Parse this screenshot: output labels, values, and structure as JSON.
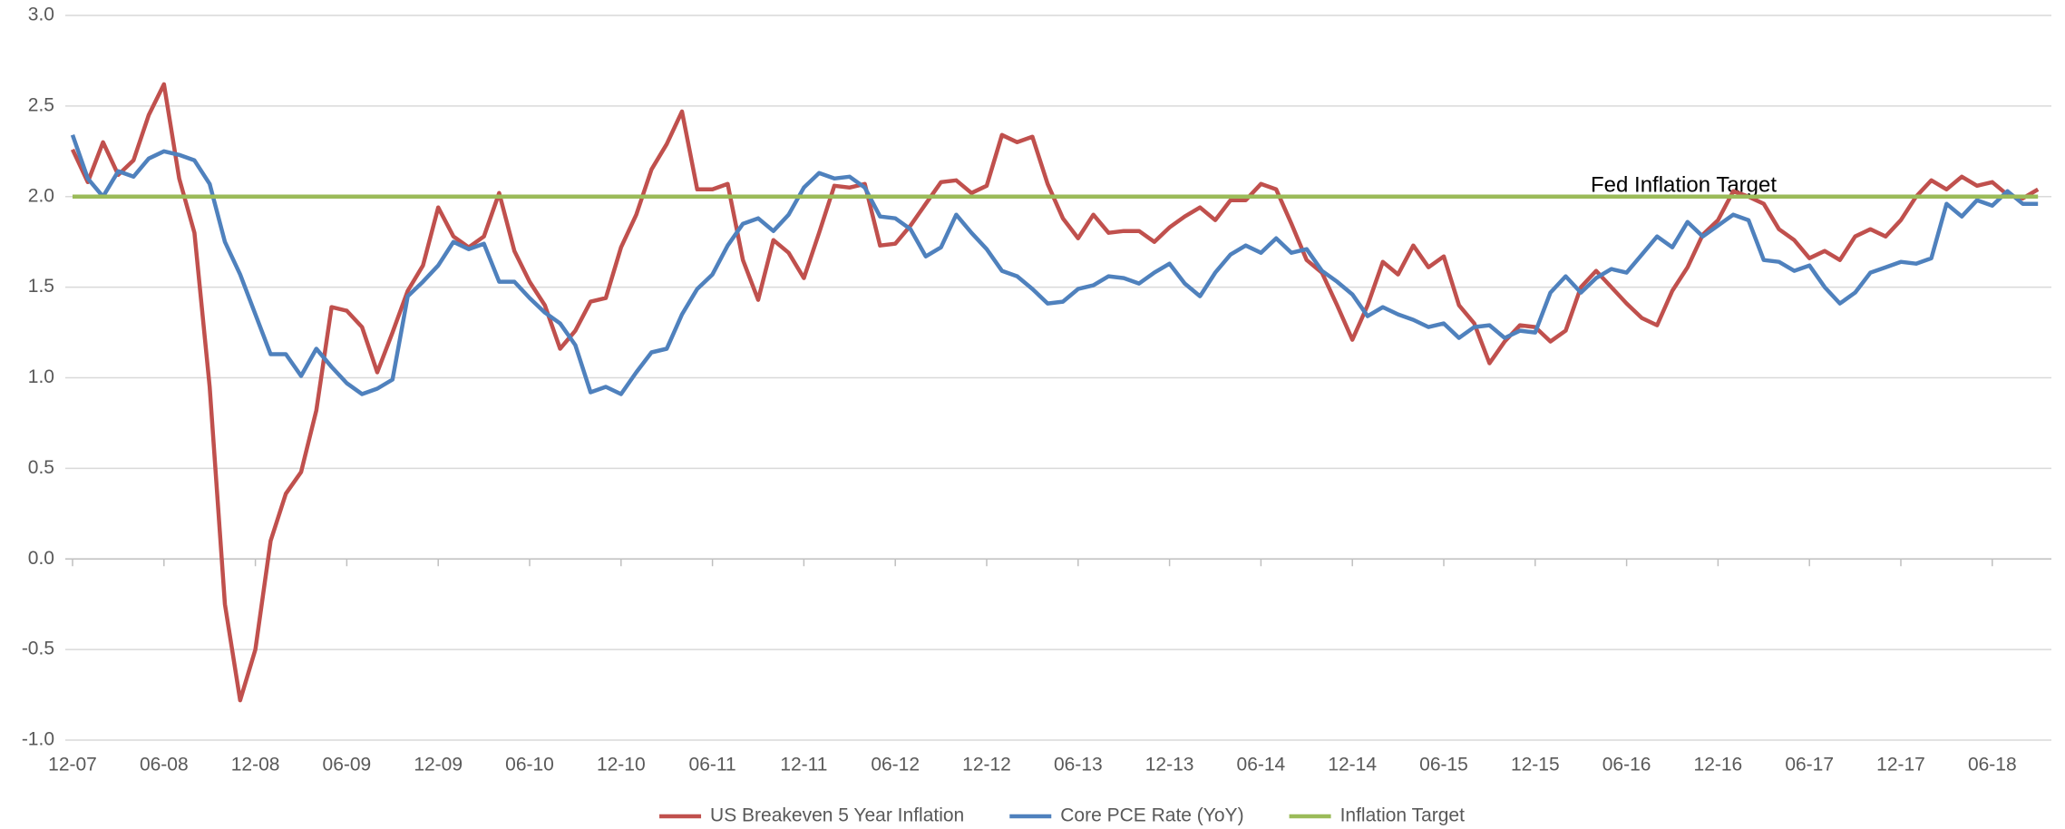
{
  "chart_data": {
    "type": "line",
    "annotation": "Fed Inflation Target",
    "categories": [
      "12-07",
      null,
      null,
      null,
      null,
      null,
      "06-08",
      null,
      null,
      null,
      null,
      null,
      "12-08",
      null,
      null,
      null,
      null,
      null,
      "06-09",
      null,
      null,
      null,
      null,
      null,
      "12-09",
      null,
      null,
      null,
      null,
      null,
      "06-10",
      null,
      null,
      null,
      null,
      null,
      "12-10",
      null,
      null,
      null,
      null,
      null,
      "06-11",
      null,
      null,
      null,
      null,
      null,
      "12-11",
      null,
      null,
      null,
      null,
      null,
      "06-12",
      null,
      null,
      null,
      null,
      null,
      "12-12",
      null,
      null,
      null,
      null,
      null,
      "06-13",
      null,
      null,
      null,
      null,
      null,
      "12-13",
      null,
      null,
      null,
      null,
      null,
      "06-14",
      null,
      null,
      null,
      null,
      null,
      "12-14",
      null,
      null,
      null,
      null,
      null,
      "06-15",
      null,
      null,
      null,
      null,
      null,
      "12-15",
      null,
      null,
      null,
      null,
      null,
      "06-16",
      null,
      null,
      null,
      null,
      null,
      "12-16",
      null,
      null,
      null,
      null,
      null,
      "06-17",
      null,
      null,
      null,
      null,
      null,
      "12-17",
      null,
      null,
      null,
      null,
      null,
      "06-18",
      null,
      null,
      null
    ],
    "series": [
      {
        "name": "US Breakeven 5 Year Inflation",
        "color": "#c0504d",
        "values": [
          2.26,
          2.08,
          2.3,
          2.12,
          2.2,
          2.45,
          2.62,
          2.1,
          1.8,
          0.95,
          -0.25,
          -0.78,
          -0.5,
          0.1,
          0.36,
          0.48,
          0.82,
          1.39,
          1.37,
          1.28,
          1.03,
          1.25,
          1.48,
          1.62,
          1.94,
          1.78,
          1.72,
          1.78,
          2.02,
          1.7,
          1.53,
          1.4,
          1.16,
          1.26,
          1.42,
          1.44,
          1.72,
          1.9,
          2.15,
          2.29,
          2.47,
          2.04,
          2.04,
          2.07,
          1.65,
          1.43,
          1.76,
          1.69,
          1.55,
          1.8,
          2.06,
          2.05,
          2.07,
          1.73,
          1.74,
          1.84,
          1.96,
          2.08,
          2.09,
          2.02,
          2.06,
          2.34,
          2.3,
          2.33,
          2.07,
          1.88,
          1.77,
          1.9,
          1.8,
          1.81,
          1.81,
          1.75,
          1.83,
          1.89,
          1.94,
          1.87,
          1.98,
          1.98,
          2.07,
          2.04,
          1.85,
          1.65,
          1.58,
          1.4,
          1.21,
          1.4,
          1.64,
          1.57,
          1.73,
          1.61,
          1.67,
          1.4,
          1.3,
          1.08,
          1.2,
          1.29,
          1.28,
          1.2,
          1.26,
          1.5,
          1.59,
          1.5,
          1.41,
          1.33,
          1.29,
          1.48,
          1.61,
          1.79,
          1.87,
          2.03,
          2.0,
          1.96,
          1.82,
          1.76,
          1.66,
          1.7,
          1.65,
          1.78,
          1.82,
          1.78,
          1.87,
          2.0,
          2.09,
          2.04,
          2.11,
          2.06,
          2.08,
          2.01,
          1.99,
          2.04
        ]
      },
      {
        "name": "Core PCE Rate (YoY)",
        "color": "#4f81bd",
        "values": [
          2.34,
          2.1,
          2.0,
          2.14,
          2.11,
          2.21,
          2.25,
          2.23,
          2.2,
          2.07,
          1.75,
          1.57,
          1.35,
          1.13,
          1.13,
          1.01,
          1.16,
          1.06,
          0.97,
          0.91,
          0.94,
          0.99,
          1.45,
          1.53,
          1.62,
          1.75,
          1.71,
          1.74,
          1.53,
          1.53,
          1.44,
          1.36,
          1.3,
          1.18,
          0.92,
          0.95,
          0.91,
          1.03,
          1.14,
          1.16,
          1.35,
          1.49,
          1.57,
          1.73,
          1.85,
          1.88,
          1.81,
          1.9,
          2.05,
          2.13,
          2.1,
          2.11,
          2.05,
          1.89,
          1.88,
          1.82,
          1.67,
          1.72,
          1.9,
          1.8,
          1.71,
          1.59,
          1.56,
          1.49,
          1.41,
          1.42,
          1.49,
          1.51,
          1.56,
          1.55,
          1.52,
          1.58,
          1.63,
          1.52,
          1.45,
          1.58,
          1.68,
          1.73,
          1.69,
          1.77,
          1.69,
          1.71,
          1.59,
          1.53,
          1.46,
          1.34,
          1.39,
          1.35,
          1.32,
          1.28,
          1.3,
          1.22,
          1.28,
          1.29,
          1.22,
          1.26,
          1.25,
          1.47,
          1.56,
          1.47,
          1.55,
          1.6,
          1.58,
          1.68,
          1.78,
          1.72,
          1.86,
          1.78,
          1.84,
          1.9,
          1.87,
          1.65,
          1.64,
          1.59,
          1.62,
          1.5,
          1.41,
          1.47,
          1.58,
          1.61,
          1.64,
          1.63,
          1.66,
          1.96,
          1.89,
          1.98,
          1.95,
          2.03,
          1.96,
          1.96
        ]
      },
      {
        "name": "Inflation Target",
        "color": "#9bbb59",
        "values": [
          2,
          2,
          2,
          2,
          2,
          2,
          2,
          2,
          2,
          2,
          2,
          2,
          2,
          2,
          2,
          2,
          2,
          2,
          2,
          2,
          2,
          2,
          2,
          2,
          2,
          2,
          2,
          2,
          2,
          2,
          2,
          2,
          2,
          2,
          2,
          2,
          2,
          2,
          2,
          2,
          2,
          2,
          2,
          2,
          2,
          2,
          2,
          2,
          2,
          2,
          2,
          2,
          2,
          2,
          2,
          2,
          2,
          2,
          2,
          2,
          2,
          2,
          2,
          2,
          2,
          2,
          2,
          2,
          2,
          2,
          2,
          2,
          2,
          2,
          2,
          2,
          2,
          2,
          2,
          2,
          2,
          2,
          2,
          2,
          2,
          2,
          2,
          2,
          2,
          2,
          2,
          2,
          2,
          2,
          2,
          2,
          2,
          2,
          2,
          2,
          2,
          2,
          2,
          2,
          2,
          2,
          2,
          2,
          2,
          2,
          2,
          2,
          2,
          2,
          2,
          2,
          2,
          2,
          2,
          2,
          2,
          2,
          2,
          2,
          2,
          2,
          2,
          2,
          2,
          2
        ]
      }
    ],
    "ylim": [
      -1,
      3
    ],
    "yticks": [
      {
        "value": -1,
        "label": "-1.0"
      },
      -0.5,
      {
        "value": 0,
        "label": "0.0"
      },
      0.5,
      {
        "value": 1,
        "label": "1.0"
      },
      1.5,
      {
        "value": 2,
        "label": "2.0"
      },
      2.5,
      {
        "value": 3,
        "label": "3.0"
      }
    ],
    "grid": true,
    "legend": "bottom"
  }
}
